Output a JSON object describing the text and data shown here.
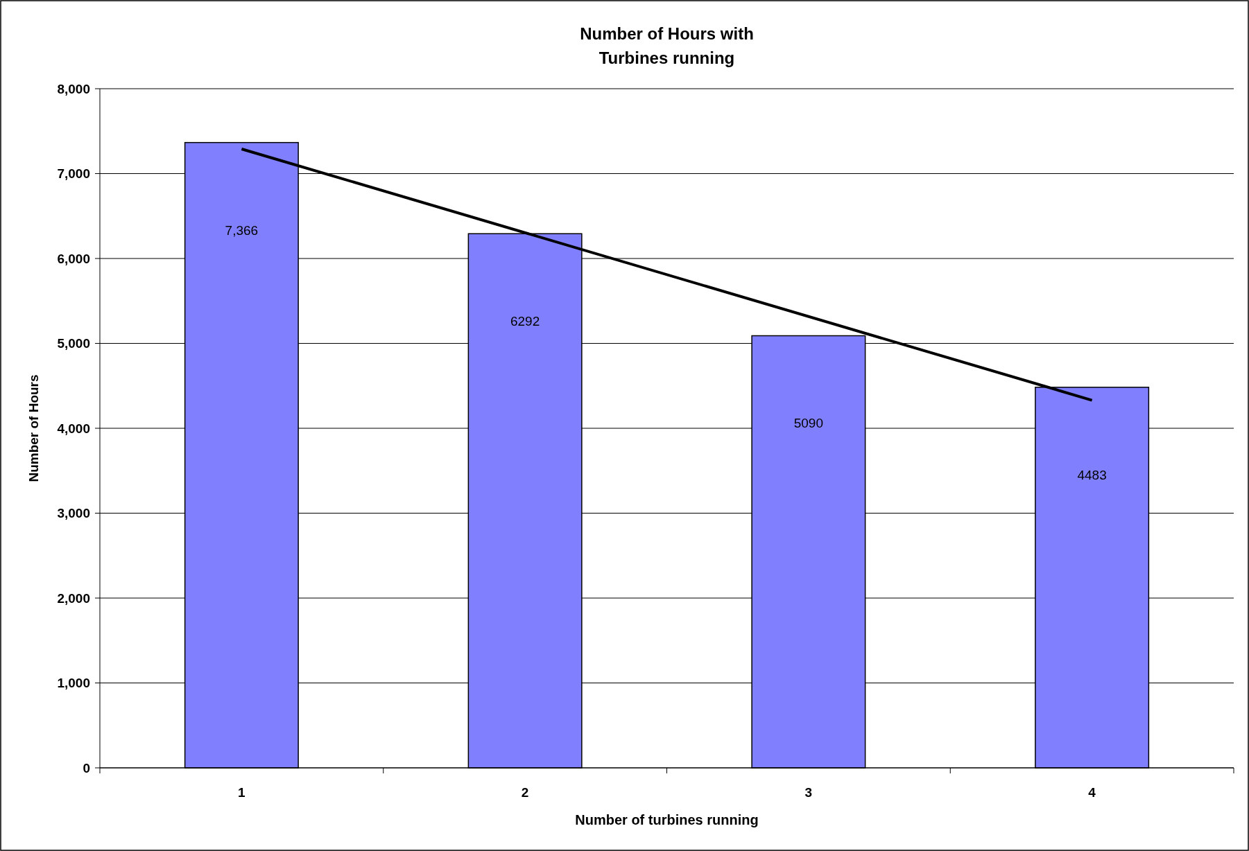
{
  "chart_data": {
    "type": "bar",
    "title": "Number of Hours with\nTurbines running",
    "xlabel": "Number of turbines running",
    "ylabel": "Number of Hours",
    "categories": [
      "1",
      "2",
      "3",
      "4"
    ],
    "series": [
      {
        "color": "#8080ff",
        "values": [
          7366,
          6292,
          5090,
          4483
        ],
        "value_labels": [
          "7,366",
          "6292",
          "5090",
          "4483"
        ]
      },
      {
        "type": "line",
        "color": "#000000",
        "x": [
          "1",
          "4"
        ],
        "values": [
          7290,
          4330
        ]
      }
    ],
    "ylim": [
      0,
      8000
    ],
    "yticks": [
      {
        "value": 0,
        "label": "0"
      },
      {
        "value": 1000,
        "label": "1,000"
      },
      {
        "value": 2000,
        "label": "2,000"
      },
      {
        "value": 3000,
        "label": "3,000"
      },
      {
        "value": 4000,
        "label": "4,000"
      },
      {
        "value": 5000,
        "label": "5,000"
      },
      {
        "value": 6000,
        "label": "6,000"
      },
      {
        "value": 7000,
        "label": "7,000"
      },
      {
        "value": 8000,
        "label": "8,000"
      }
    ],
    "grid": "y"
  }
}
